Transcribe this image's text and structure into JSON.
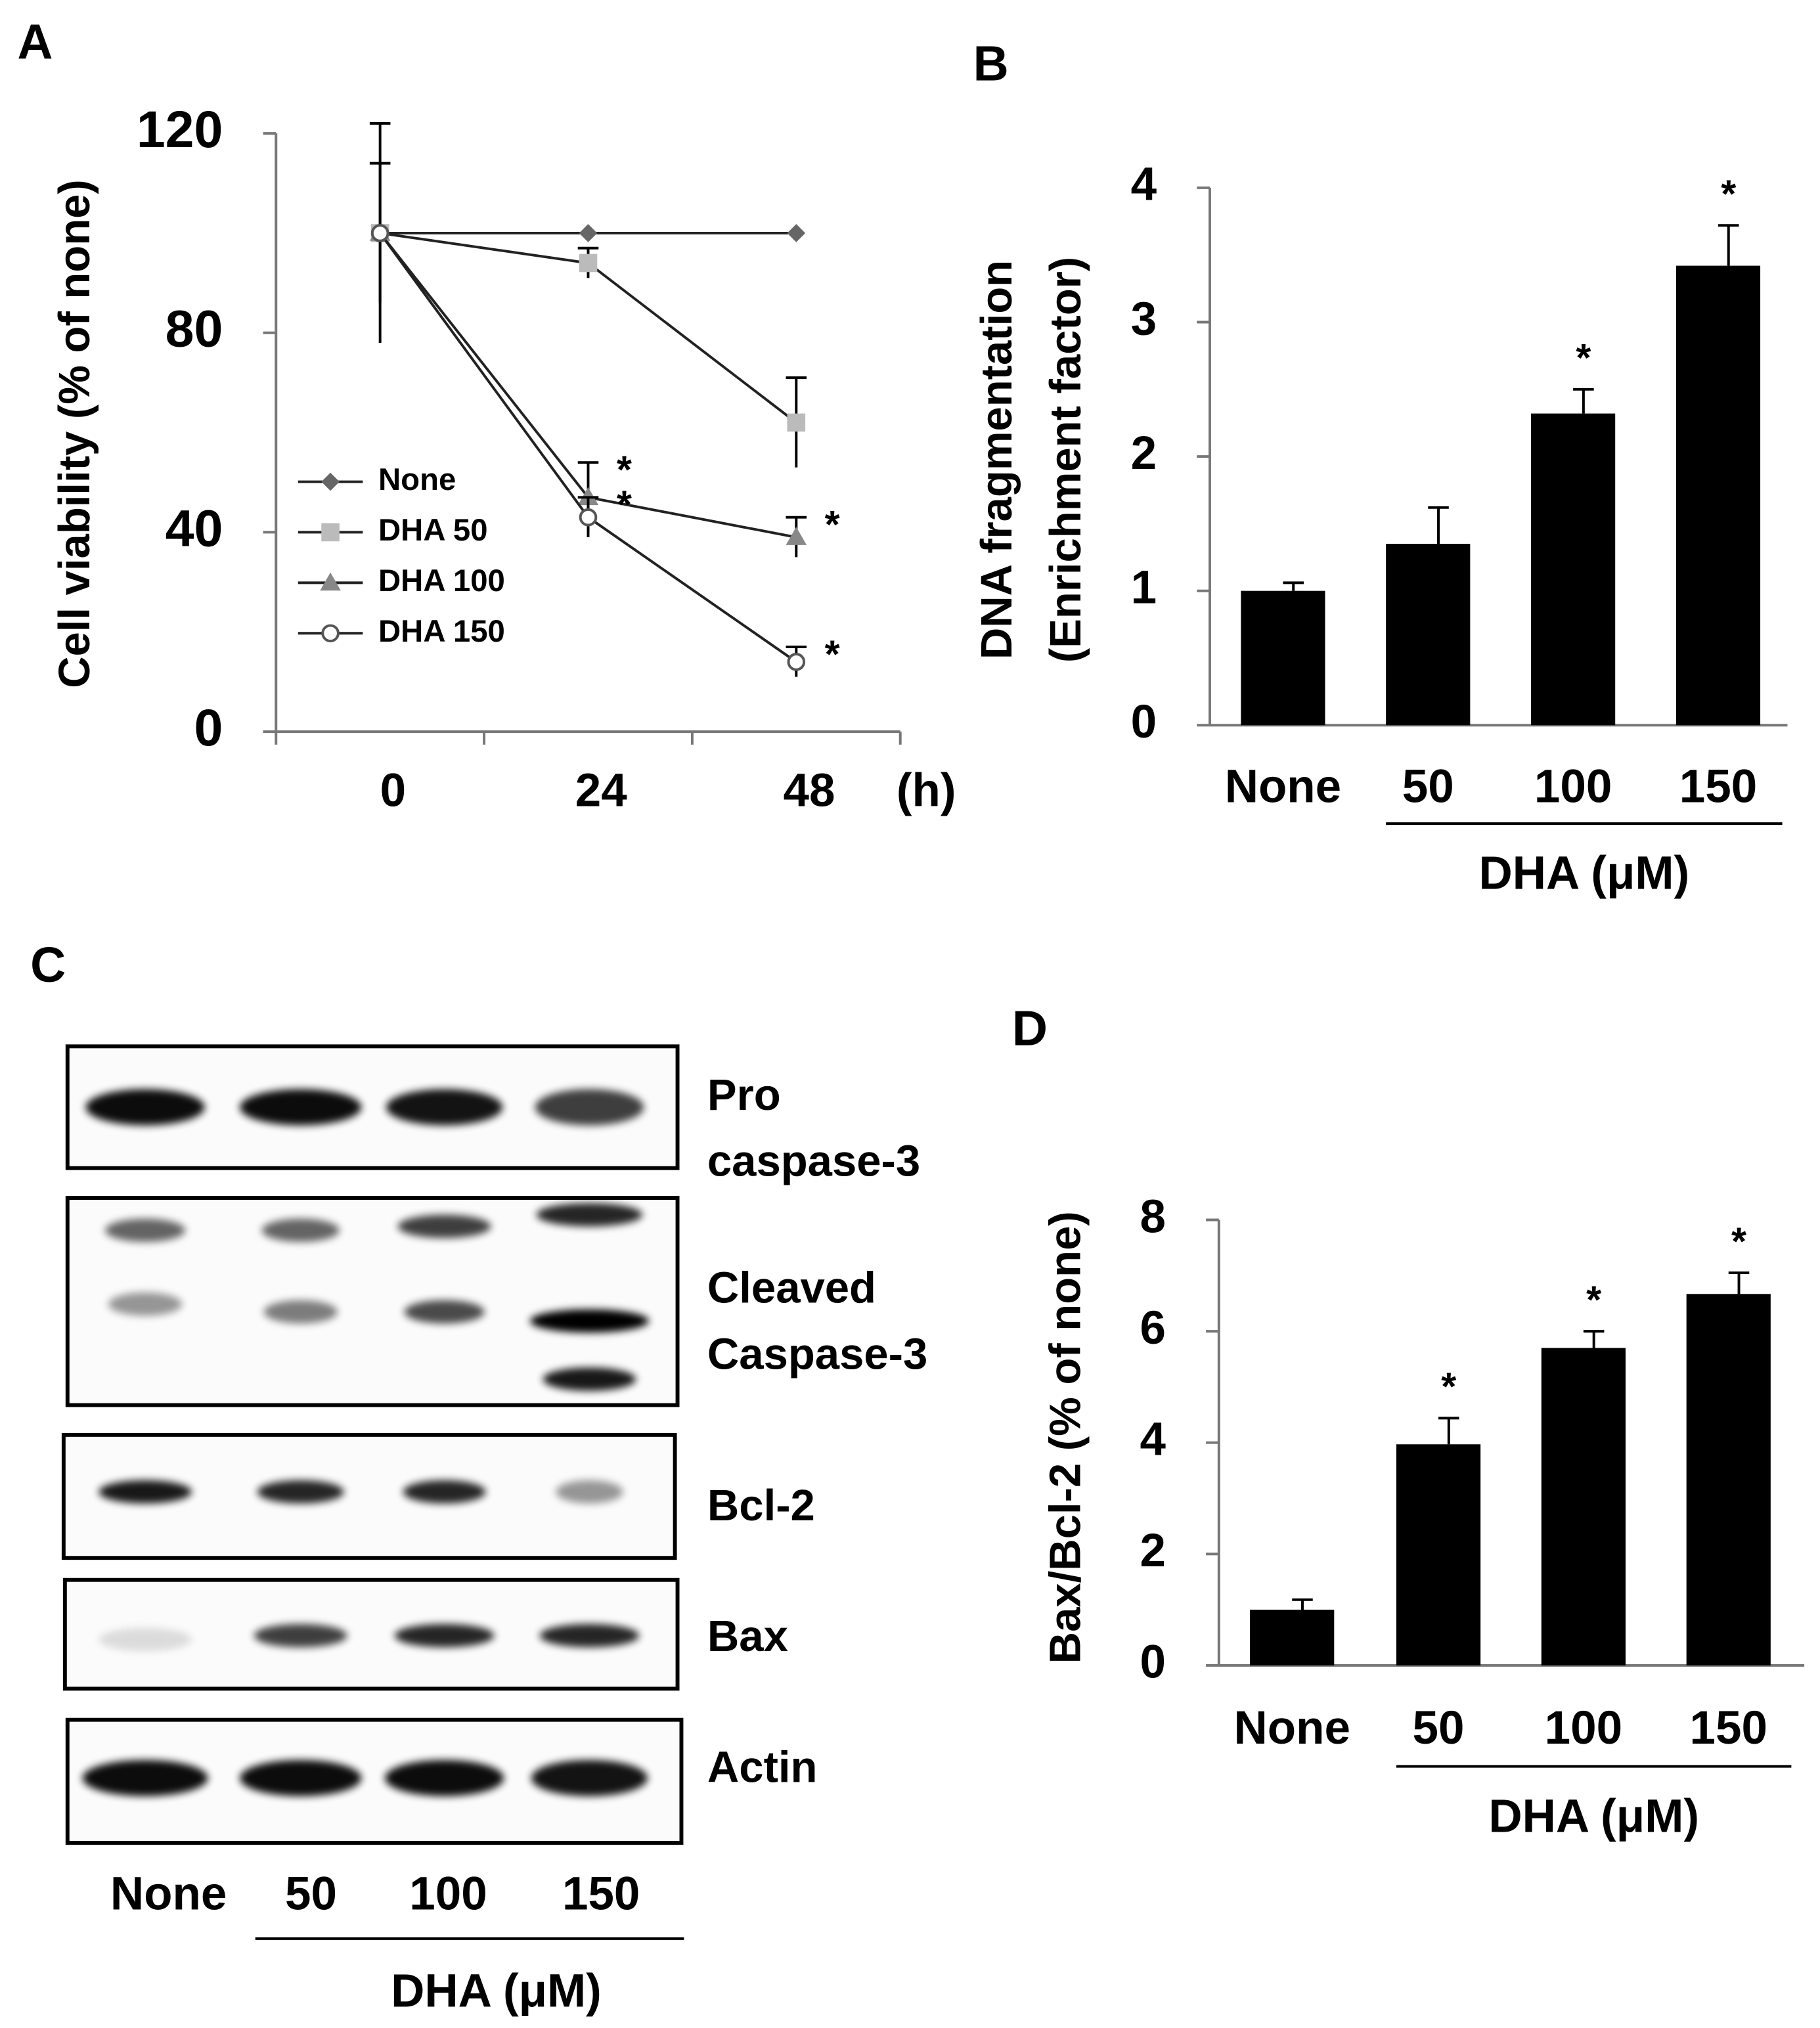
{
  "chart_data": [
    {
      "type": "line",
      "panel": "A",
      "y_label": "Cell viability (% of none)",
      "x_label": "(h)",
      "categories": [
        "0",
        "24",
        "48"
      ],
      "ylim": [
        0,
        120
      ],
      "yticks": [
        0,
        40,
        80,
        120
      ],
      "legend": "center left",
      "series": [
        {
          "name": "None",
          "color": "#666666",
          "marker": "diamond",
          "values": [
            100,
            100,
            100
          ],
          "errors": [
            0,
            0,
            0
          ],
          "labels": [
            null,
            null,
            null
          ]
        },
        {
          "name": "DHA 50",
          "color": "#bbbbbb",
          "marker": "square",
          "values": [
            100,
            94,
            62
          ],
          "errors": [
            0,
            3,
            9
          ],
          "labels": [
            null,
            null,
            null
          ]
        },
        {
          "name": "DHA 100",
          "color": "#888888",
          "marker": "triangle",
          "values": [
            100,
            47,
            39
          ],
          "errors": [
            14,
            7,
            4
          ],
          "labels": [
            null,
            "*",
            "*"
          ]
        },
        {
          "name": "DHA 150",
          "color": "#555555",
          "marker": "circle-open",
          "values": [
            100,
            43,
            14
          ],
          "errors": [
            22,
            4,
            3
          ],
          "labels": [
            null,
            "*",
            "*"
          ]
        }
      ]
    },
    {
      "type": "bar",
      "panel": "B",
      "y_label": [
        "DNA fragmentation",
        "(Enrichment factor)"
      ],
      "group_label": "DHA (μM)",
      "categories": [
        "None",
        "50",
        "100",
        "150"
      ],
      "values": [
        1,
        1.35,
        2.32,
        3.42
      ],
      "errors": [
        0.06,
        0.27,
        0.18,
        0.3
      ],
      "labels": [
        null,
        null,
        "*",
        "*"
      ],
      "color": "#000000",
      "ylim": [
        0,
        4
      ],
      "yticks": [
        0,
        1,
        2,
        3,
        4
      ]
    },
    {
      "type": "blot",
      "panel": "C",
      "group_label": "DHA (μM)",
      "lanes": [
        "None",
        "50",
        "100",
        "150"
      ],
      "rows": [
        {
          "label": [
            "Pro",
            "caspase-3"
          ]
        },
        {
          "label": [
            "Cleaved",
            "Caspase-3"
          ]
        },
        {
          "label": [
            "Bcl-2"
          ]
        },
        {
          "label": [
            "Bax"
          ]
        },
        {
          "label": [
            "Actin"
          ]
        }
      ]
    },
    {
      "type": "bar",
      "panel": "D",
      "y_label": "Bax/Bcl-2 (% of none)",
      "group_label": "DHA (μM)",
      "categories": [
        "None",
        "50",
        "100",
        "150"
      ],
      "values": [
        1,
        3.97,
        5.7,
        6.67
      ],
      "errors": [
        0.18,
        0.47,
        0.3,
        0.38
      ],
      "labels": [
        null,
        "*",
        "*",
        "*"
      ],
      "color": "#000000",
      "ylim": [
        0,
        8
      ],
      "yticks": [
        0,
        2,
        4,
        6,
        8
      ]
    }
  ]
}
